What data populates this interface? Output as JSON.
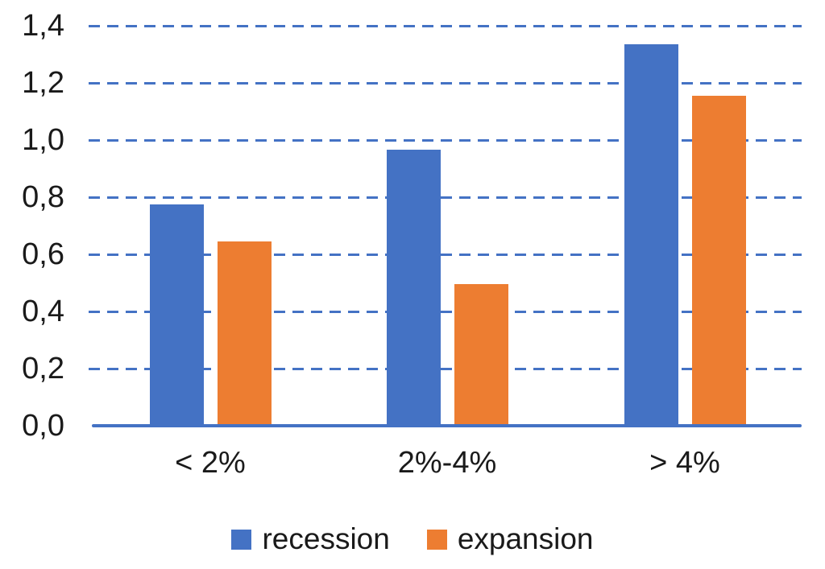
{
  "chart_data": {
    "type": "bar",
    "title": "",
    "categories": [
      "< 2%",
      "2%-4%",
      "> 4%"
    ],
    "series": [
      {
        "name": "recession",
        "color": "#4472C4",
        "values": [
          0.77,
          0.96,
          1.33
        ]
      },
      {
        "name": "expansion",
        "color": "#ED7D31",
        "values": [
          0.64,
          0.49,
          1.15
        ]
      }
    ],
    "xlabel": "",
    "ylabel": "",
    "ylim": [
      0,
      1.4
    ],
    "ytick_step": 0.2,
    "ytick_labels": [
      "0,0",
      "0,2",
      "0,4",
      "0,6",
      "0,8",
      "1,0",
      "1,2",
      "1,4"
    ],
    "decimal_separator": ",",
    "grid": "horizontal-dashed",
    "gridline_color": "#4472C4",
    "axis_line_color": "#4472C4",
    "text_color": "#1a1a1a",
    "legend_position": "bottom"
  }
}
